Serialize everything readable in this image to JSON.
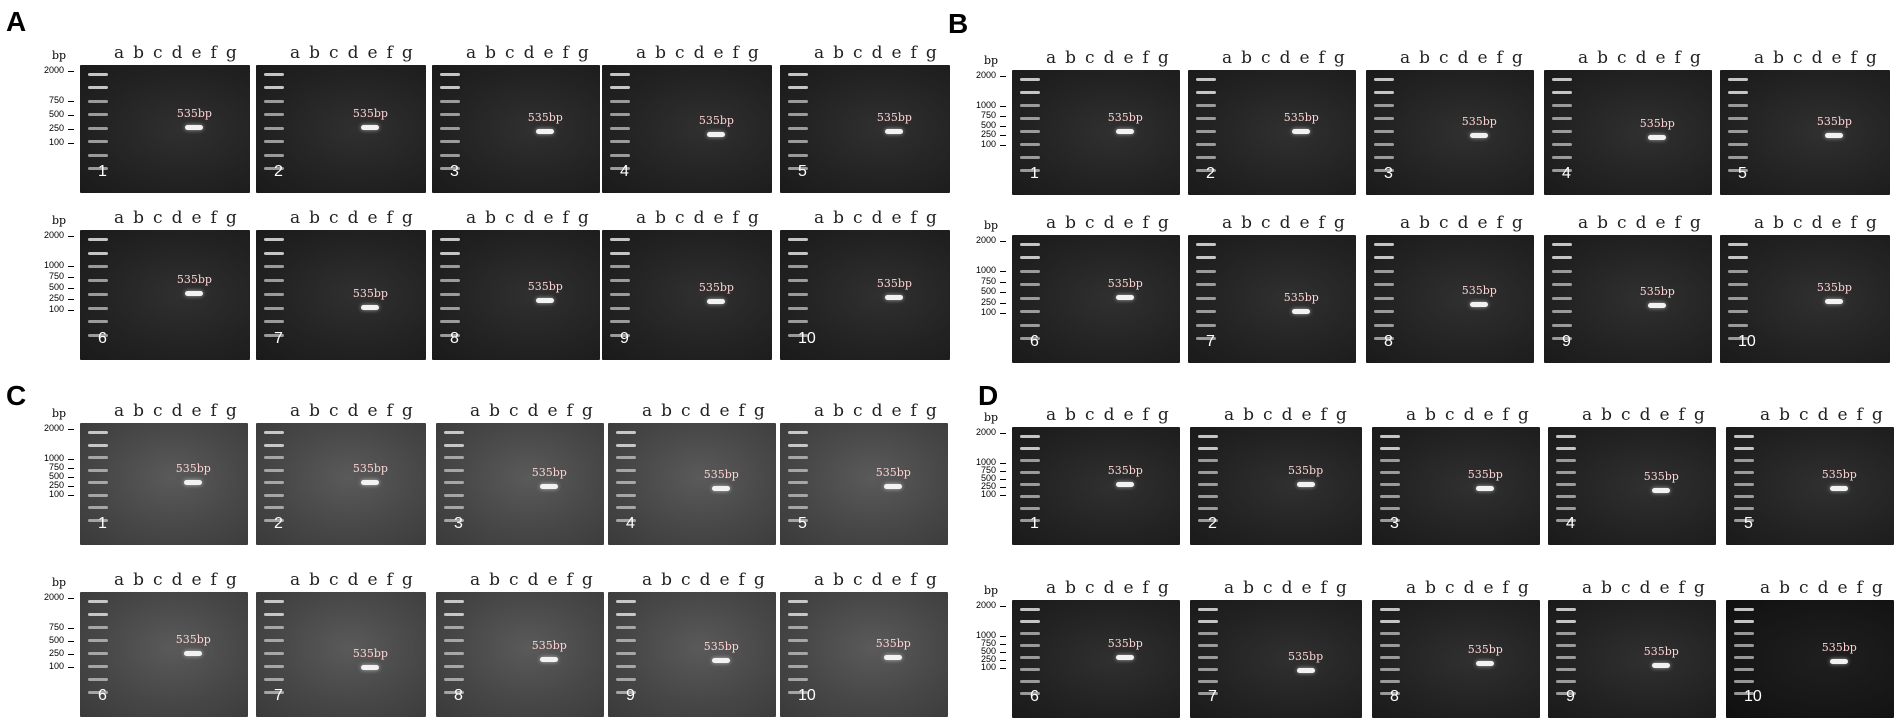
{
  "lane_letters": [
    "a",
    "b",
    "c",
    "d",
    "e",
    "f",
    "g"
  ],
  "bp_label": "bp",
  "band_label": "535bp",
  "panels": [
    {
      "letter": "A",
      "rows": [
        {
          "markers": [
            "2000",
            "750",
            "500",
            "250",
            "100"
          ],
          "gels": [
            "1",
            "2",
            "3",
            "4",
            "5"
          ]
        },
        {
          "markers": [
            "2000",
            "1000",
            "750",
            "500",
            "250",
            "100"
          ],
          "gels": [
            "6",
            "7",
            "8",
            "9",
            "10"
          ]
        }
      ]
    },
    {
      "letter": "B",
      "rows": [
        {
          "markers": [
            "2000",
            "1000",
            "750",
            "500",
            "250",
            "100"
          ],
          "gels": [
            "1",
            "2",
            "3",
            "4",
            "5"
          ]
        },
        {
          "markers": [
            "2000",
            "1000",
            "750",
            "500",
            "250",
            "100"
          ],
          "gels": [
            "6",
            "7",
            "8",
            "9",
            "10"
          ]
        }
      ]
    },
    {
      "letter": "C",
      "rows": [
        {
          "markers": [
            "2000",
            "1000",
            "750",
            "500",
            "250",
            "100"
          ],
          "gels": [
            "1",
            "2",
            "3",
            "4",
            "5"
          ]
        },
        {
          "markers": [
            "2000",
            "750",
            "500",
            "250",
            "100"
          ],
          "gels": [
            "6",
            "7",
            "8",
            "9",
            "10"
          ]
        }
      ]
    },
    {
      "letter": "D",
      "rows": [
        {
          "markers": [
            "2000",
            "1000",
            "750",
            "500",
            "250",
            "100"
          ],
          "gels": [
            "1",
            "2",
            "3",
            "4",
            "5"
          ]
        },
        {
          "markers": [
            "2000",
            "1000",
            "750",
            "500",
            "250",
            "100"
          ],
          "gels": [
            "6",
            "7",
            "8",
            "9",
            "10"
          ]
        }
      ]
    }
  ]
}
